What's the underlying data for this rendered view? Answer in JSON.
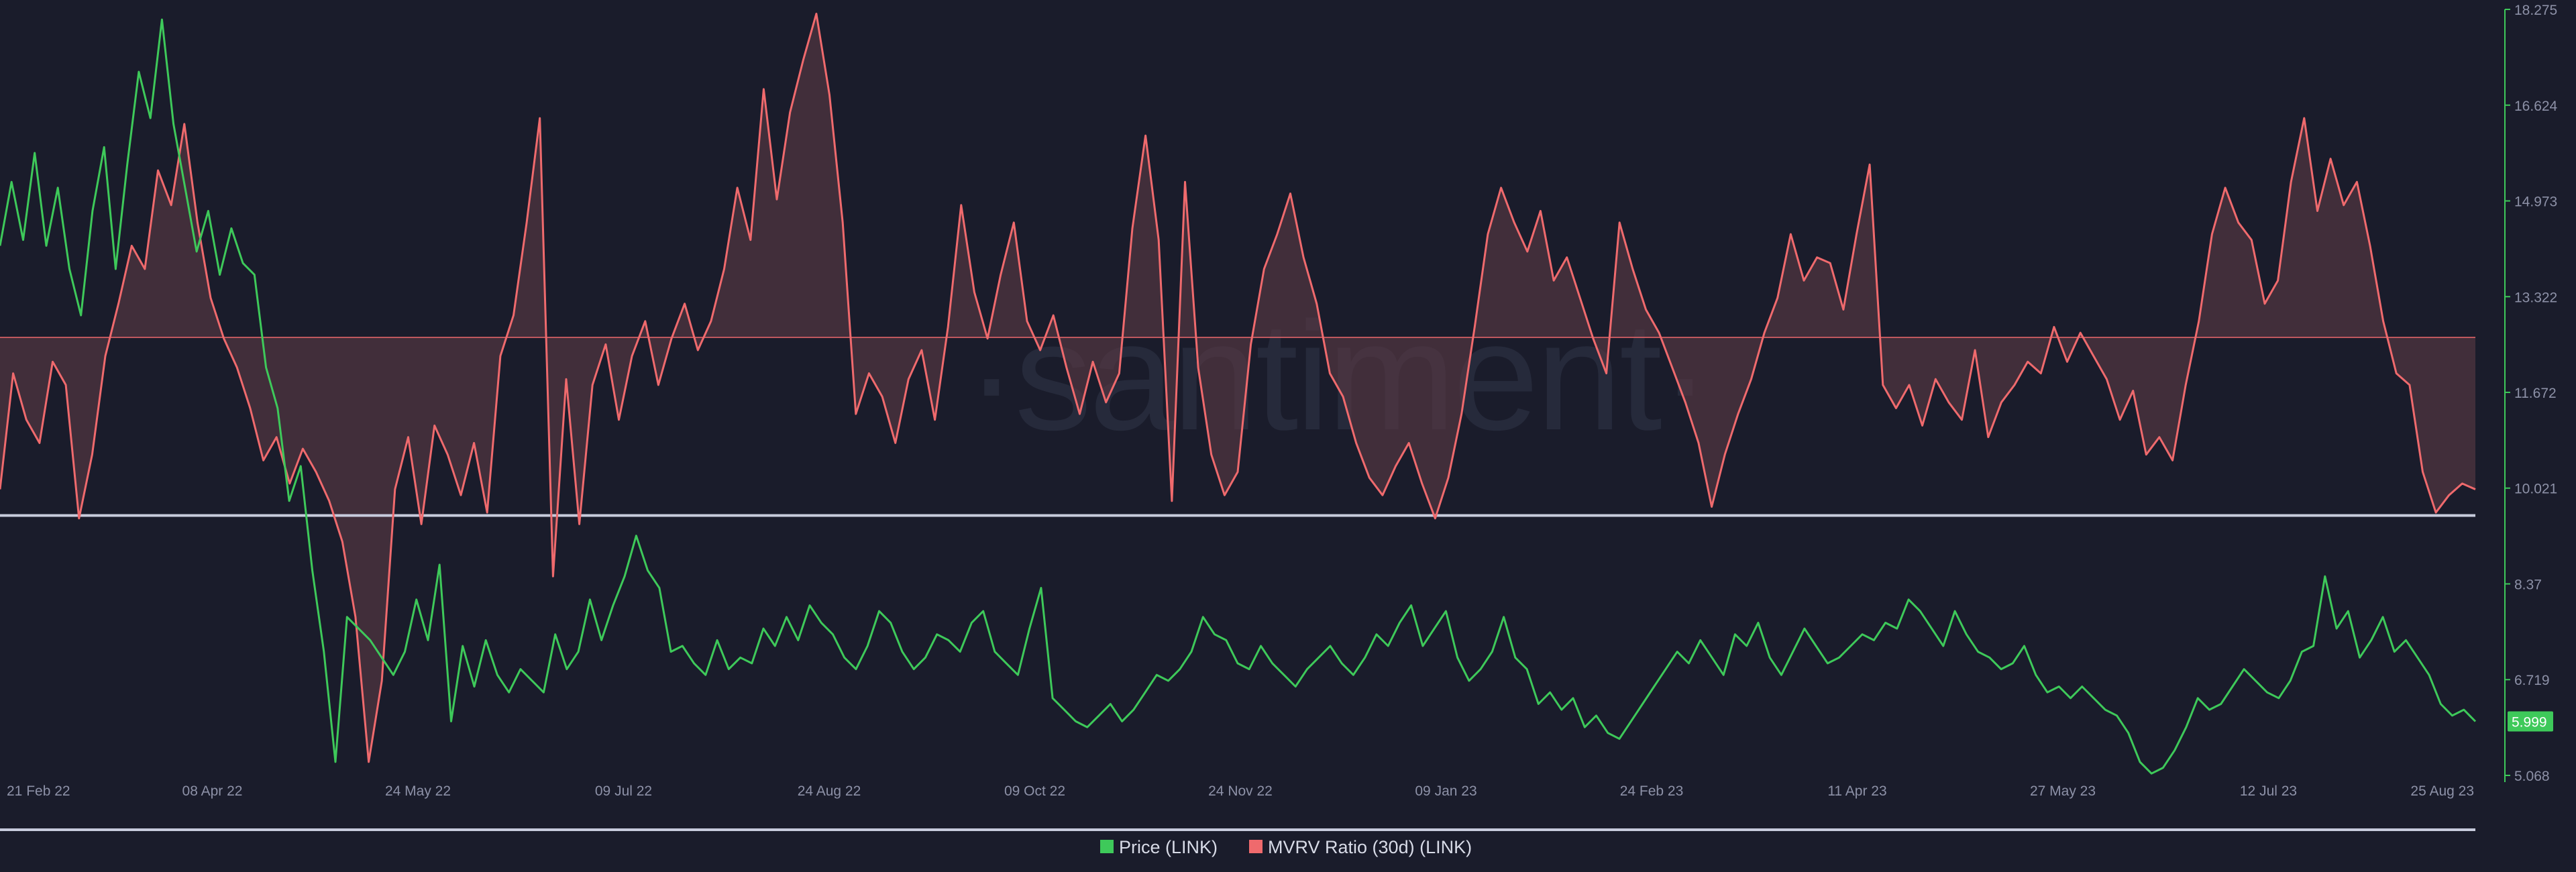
{
  "chart_data": {
    "type": "line",
    "watermark": "·santiment·",
    "x_ticks": [
      "21 Feb 22",
      "08 Apr 22",
      "24 May 22",
      "09 Jul 22",
      "24 Aug 22",
      "09 Oct 22",
      "24 Nov 22",
      "09 Jan 23",
      "24 Feb 23",
      "11 Apr 23",
      "27 May 23",
      "12 Jul 23",
      "25 Aug 23"
    ],
    "y_ticks": [
      "18.275",
      "16.624",
      "14.973",
      "13.322",
      "11.672",
      "10.021",
      "8.37",
      "6.719",
      "5.068"
    ],
    "ylim": [
      5.068,
      18.275
    ],
    "last_price_label": "5.999",
    "series": [
      {
        "name": "Price (LINK)",
        "color": "#3ec95a",
        "values": [
          14.2,
          15.3,
          14.3,
          15.8,
          14.2,
          15.2,
          13.8,
          13.0,
          14.8,
          15.9,
          13.8,
          15.6,
          17.2,
          16.4,
          18.1,
          16.3,
          15.2,
          14.1,
          14.8,
          13.7,
          14.5,
          13.9,
          13.7,
          12.1,
          11.4,
          9.8,
          10.4,
          8.6,
          7.2,
          5.3,
          7.8,
          7.6,
          7.4,
          7.1,
          6.8,
          7.2,
          8.1,
          7.4,
          8.7,
          6.0,
          7.3,
          6.6,
          7.4,
          6.8,
          6.5,
          6.9,
          6.7,
          6.5,
          7.5,
          6.9,
          7.2,
          8.1,
          7.4,
          8.0,
          8.5,
          9.2,
          8.6,
          8.3,
          7.2,
          7.3,
          7.0,
          6.8,
          7.4,
          6.9,
          7.1,
          7.0,
          7.6,
          7.3,
          7.8,
          7.4,
          8.0,
          7.7,
          7.5,
          7.1,
          6.9,
          7.3,
          7.9,
          7.7,
          7.2,
          6.9,
          7.1,
          7.5,
          7.4,
          7.2,
          7.7,
          7.9,
          7.2,
          7.0,
          6.8,
          7.6,
          8.3,
          6.4,
          6.2,
          6.0,
          5.9,
          6.1,
          6.3,
          6.0,
          6.2,
          6.5,
          6.8,
          6.7,
          6.9,
          7.2,
          7.8,
          7.5,
          7.4,
          7.0,
          6.9,
          7.3,
          7.0,
          6.8,
          6.6,
          6.9,
          7.1,
          7.3,
          7.0,
          6.8,
          7.1,
          7.5,
          7.3,
          7.7,
          8.0,
          7.3,
          7.6,
          7.9,
          7.1,
          6.7,
          6.9,
          7.2,
          7.8,
          7.1,
          6.9,
          6.3,
          6.5,
          6.2,
          6.4,
          5.9,
          6.1,
          5.8,
          5.7,
          6.0,
          6.3,
          6.6,
          6.9,
          7.2,
          7.0,
          7.4,
          7.1,
          6.8,
          7.5,
          7.3,
          7.7,
          7.1,
          6.8,
          7.2,
          7.6,
          7.3,
          7.0,
          7.1,
          7.3,
          7.5,
          7.4,
          7.7,
          7.6,
          8.1,
          7.9,
          7.6,
          7.3,
          7.9,
          7.5,
          7.2,
          7.1,
          6.9,
          7.0,
          7.3,
          6.8,
          6.5,
          6.6,
          6.4,
          6.6,
          6.4,
          6.2,
          6.1,
          5.8,
          5.3,
          5.1,
          5.2,
          5.5,
          5.9,
          6.4,
          6.2,
          6.3,
          6.6,
          6.9,
          6.7,
          6.5,
          6.4,
          6.7,
          7.2,
          7.3,
          8.5,
          7.6,
          7.9,
          7.1,
          7.4,
          7.8,
          7.2,
          7.4,
          7.1,
          6.8,
          6.3,
          6.1,
          6.2,
          5.999
        ]
      },
      {
        "name": "MVRV Ratio (30d) (LINK)",
        "color": "#ef6a6d",
        "values": [
          10.0,
          12.0,
          11.2,
          10.8,
          12.2,
          11.8,
          9.5,
          10.6,
          12.3,
          13.2,
          14.2,
          13.8,
          15.5,
          14.9,
          16.3,
          14.6,
          13.3,
          12.6,
          12.1,
          11.4,
          10.5,
          10.9,
          10.1,
          10.7,
          10.3,
          9.8,
          9.1,
          7.8,
          5.3,
          6.7,
          10.0,
          10.9,
          9.4,
          11.1,
          10.6,
          9.9,
          10.8,
          9.6,
          12.3,
          13.0,
          14.6,
          16.4,
          8.5,
          11.9,
          9.4,
          11.8,
          12.5,
          11.2,
          12.3,
          12.9,
          11.8,
          12.6,
          13.2,
          12.4,
          12.9,
          13.8,
          15.2,
          14.3,
          16.9,
          15.0,
          16.5,
          17.4,
          18.2,
          16.8,
          14.6,
          11.3,
          12.0,
          11.6,
          10.8,
          11.9,
          12.4,
          11.2,
          12.8,
          14.9,
          13.4,
          12.6,
          13.7,
          14.6,
          12.9,
          12.4,
          13.0,
          12.1,
          11.3,
          12.2,
          11.5,
          12.0,
          14.5,
          16.1,
          14.3,
          9.8,
          15.3,
          12.1,
          10.6,
          9.9,
          10.3,
          12.5,
          13.8,
          14.4,
          15.1,
          14.0,
          13.2,
          12.0,
          11.6,
          10.8,
          10.2,
          9.9,
          10.4,
          10.8,
          10.1,
          9.5,
          10.2,
          11.3,
          12.8,
          14.4,
          15.2,
          14.6,
          14.1,
          14.8,
          13.6,
          14.0,
          13.3,
          12.6,
          12.0,
          14.6,
          13.8,
          13.1,
          12.7,
          12.1,
          11.5,
          10.8,
          9.7,
          10.6,
          11.3,
          11.9,
          12.7,
          13.3,
          14.4,
          13.6,
          14.0,
          13.9,
          13.1,
          14.4,
          15.6,
          11.8,
          11.4,
          11.8,
          11.1,
          11.9,
          11.5,
          11.2,
          12.4,
          10.9,
          11.5,
          11.8,
          12.2,
          12.0,
          12.8,
          12.2,
          12.7,
          12.3,
          11.9,
          11.2,
          11.7,
          10.6,
          10.9,
          10.5,
          11.8,
          12.9,
          14.4,
          15.2,
          14.6,
          14.3,
          13.2,
          13.6,
          15.3,
          16.4,
          14.8,
          15.7,
          14.9,
          15.3,
          14.2,
          12.9,
          12.0,
          11.8,
          10.3,
          9.6,
          9.9,
          10.1,
          10.0
        ]
      }
    ],
    "legend": [
      "Price (LINK)",
      "MVRV Ratio (30d) (LINK)"
    ],
    "grid": false,
    "legend_position": "bottom-center",
    "colors": {
      "background": "#1a1c2b",
      "price": "#3ec95a",
      "mvrv": "#ef6a6d",
      "mvrv_fill": "#5c3a45",
      "reference_line": "#c7cbdc",
      "axis_text": "#8d91a7"
    }
  }
}
